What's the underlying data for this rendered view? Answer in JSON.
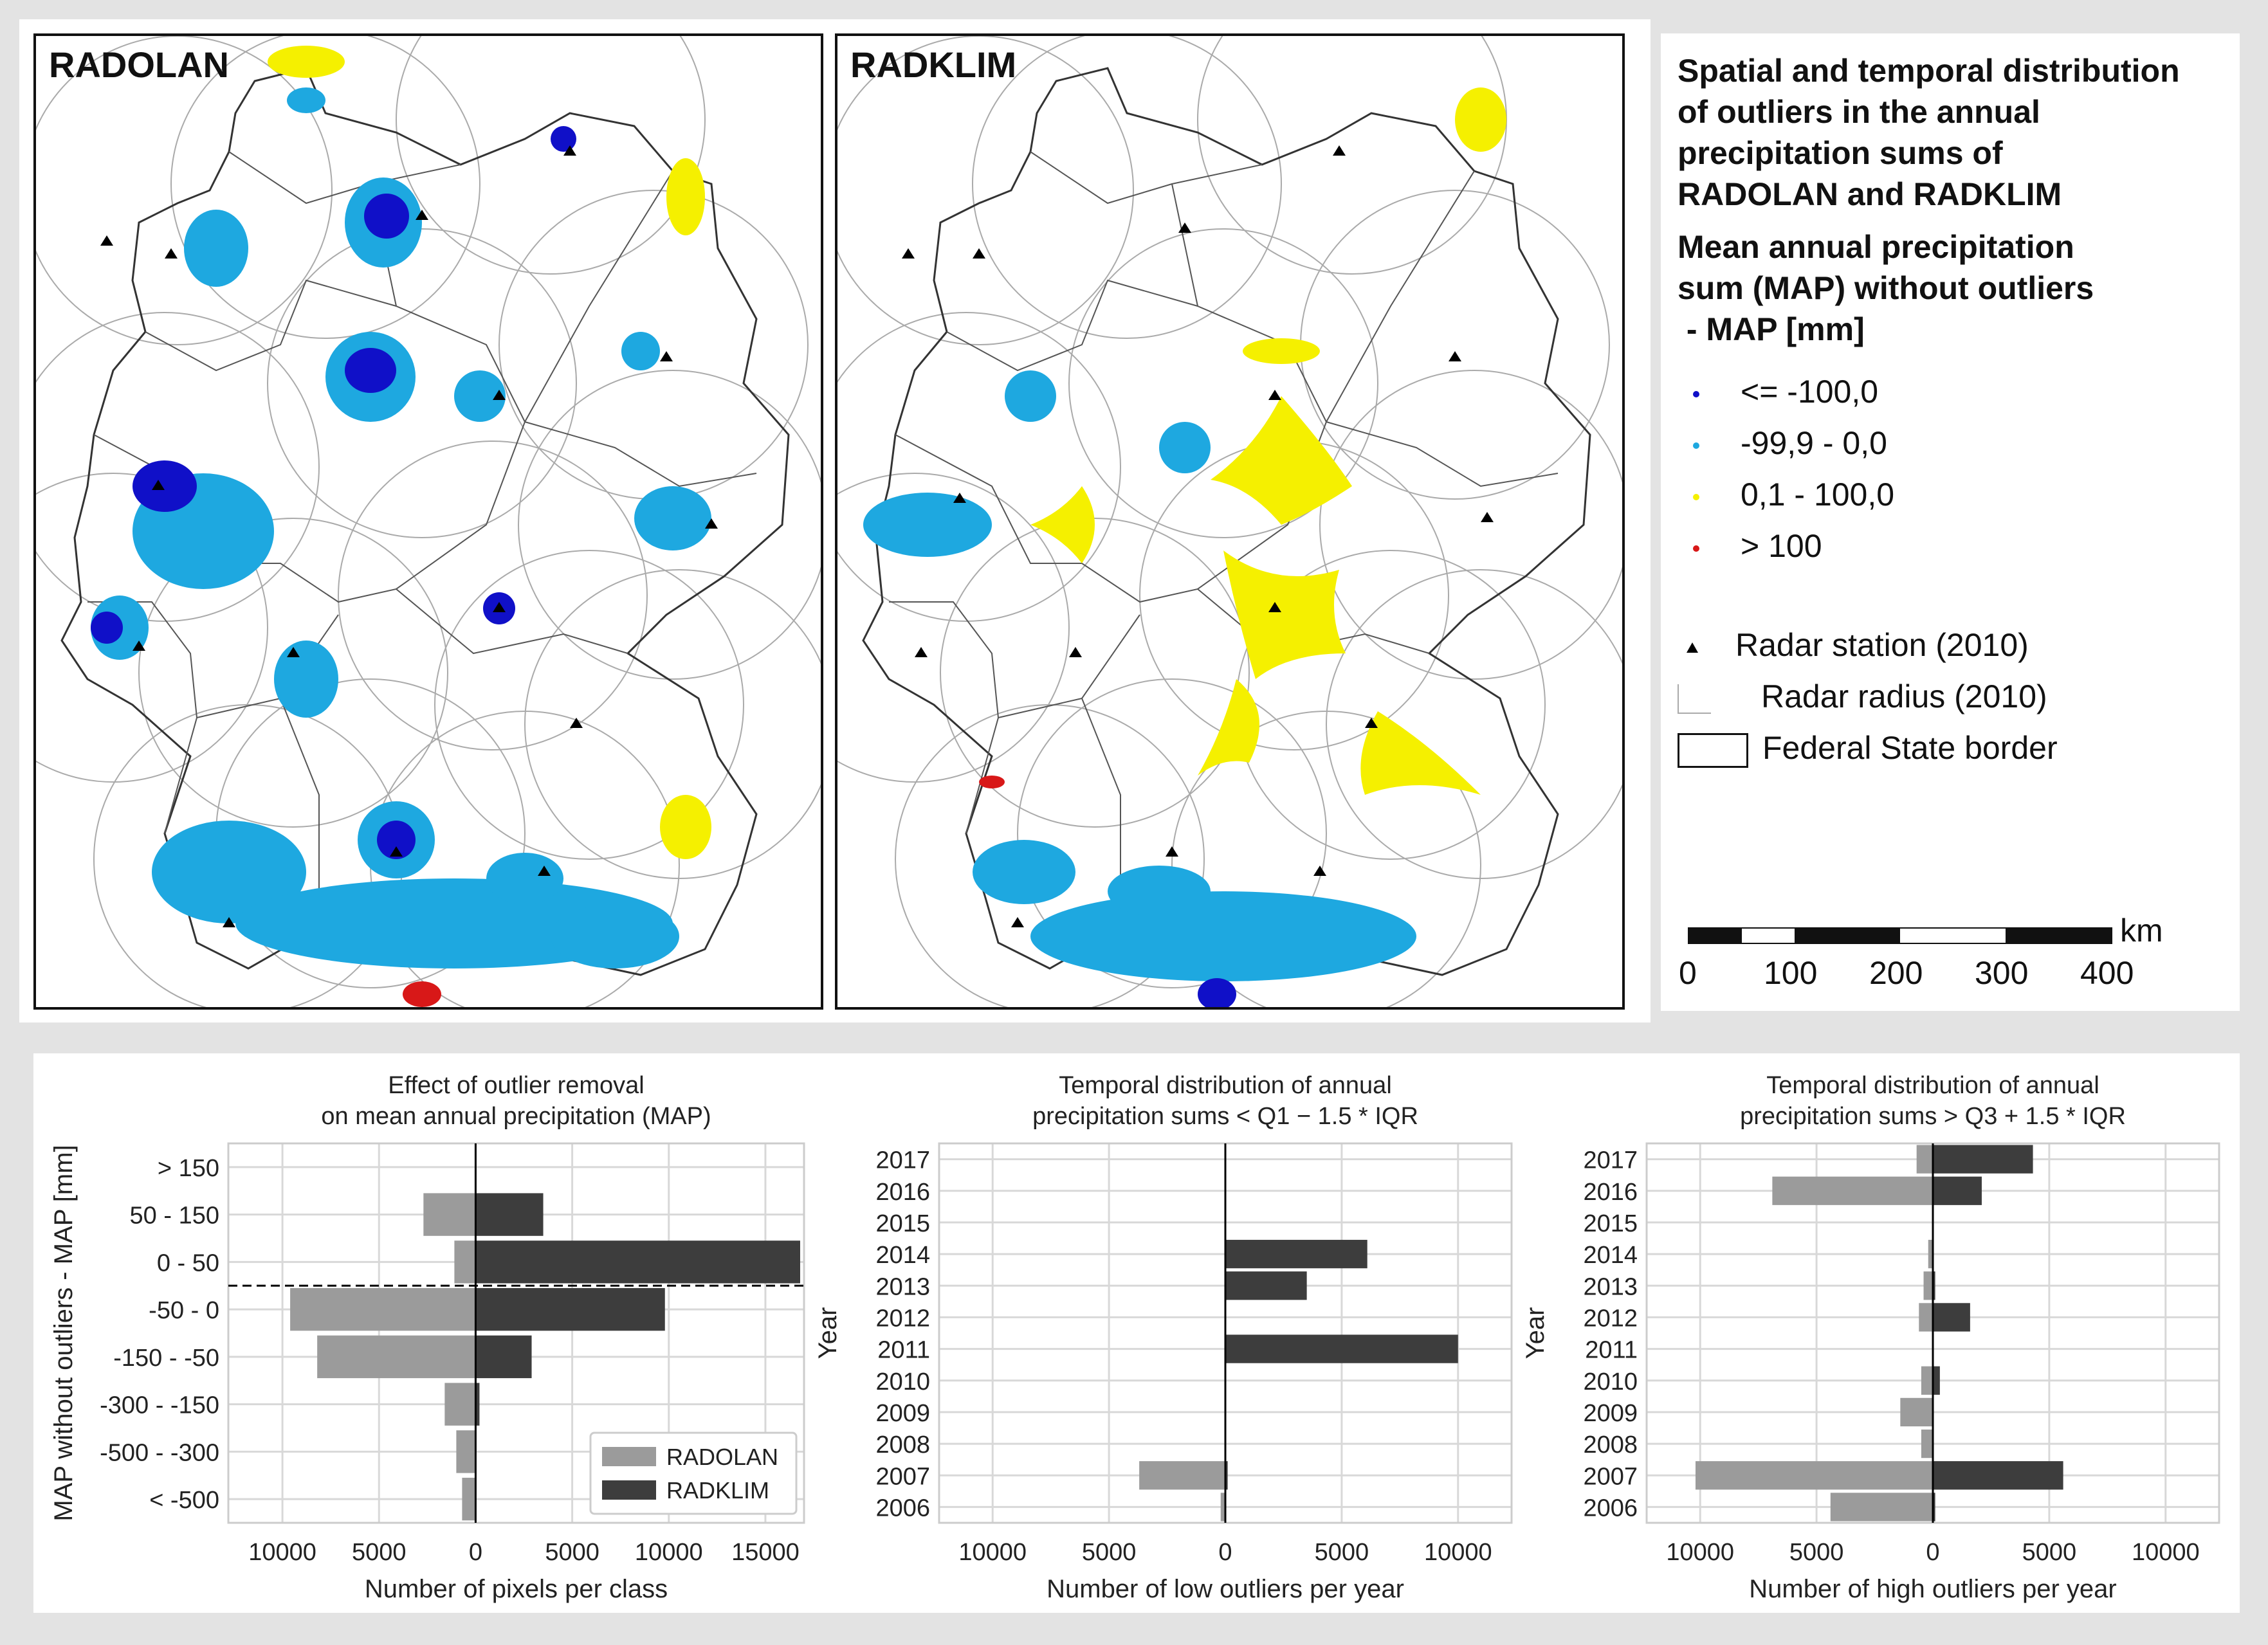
{
  "maps": {
    "left_title": "RADOLAN",
    "right_title": "RADKLIM"
  },
  "legend": {
    "title": [
      "Spatial and temporal distribution",
      "of outliers in the annual",
      "precipitation sums of",
      "RADOLAN and RADKLIM"
    ],
    "subtitle": [
      "Mean annual precipitation",
      "sum (MAP) without outliers",
      " - MAP [mm]"
    ],
    "classes": [
      {
        "label": "<= -100,0",
        "color": "#1010c8"
      },
      {
        "label": "-99,9 - 0,0",
        "color": "#1ea8e0"
      },
      {
        "label": "0,1 - 100,0",
        "color": "#f5f000"
      },
      {
        "label": "> 100",
        "color": "#d81818"
      }
    ],
    "radar_station": "Radar station (2010)",
    "radar_radius": "Radar radius (2010)",
    "state_border": "Federal State border",
    "scale_unit": "km",
    "scale_ticks": [
      "0",
      "100",
      "200",
      "300",
      "400"
    ]
  },
  "colors": {
    "radolan": "#9b9b9b",
    "radklim": "#3d3d3d"
  },
  "chart_data": [
    {
      "type": "bar",
      "orientation": "horizontal",
      "title": "Effect of outlier removal\non mean annual precipitation (MAP)",
      "xlabel": "Number of pixels per class",
      "ylabel": "MAP without outliers - MAP [mm]",
      "categories": [
        "> 150",
        "50 - 150",
        "0 - 50",
        "-50 - 0",
        "-150 - -50",
        "-300 - -150",
        "-500 - -300",
        "< -500"
      ],
      "xlim": [
        -12800,
        17000
      ],
      "xticks": [
        -10000,
        -5000,
        0,
        5000,
        10000,
        15000
      ],
      "xtick_labels": [
        "10000",
        "5000",
        "0",
        "5000",
        "10000",
        "15000"
      ],
      "series": [
        {
          "name": "RADOLAN",
          "values": [
            0,
            -2700,
            -1100,
            -9600,
            -8200,
            -1600,
            -1000,
            -700
          ]
        },
        {
          "name": "RADKLIM",
          "values": [
            0,
            3500,
            16800,
            9800,
            2900,
            200,
            0,
            0
          ]
        }
      ],
      "legend": "bottom-right",
      "reference_line_between": [
        "0 - 50",
        "-50 - 0"
      ]
    },
    {
      "type": "bar",
      "orientation": "horizontal",
      "title": "Temporal distribution of annual\nprecipitation sums  < Q1 − 1.5 * IQR",
      "xlabel": "Number of low outliers per year",
      "ylabel": "Year",
      "categories": [
        "2017",
        "2016",
        "2015",
        "2014",
        "2013",
        "2012",
        "2011",
        "2010",
        "2009",
        "2008",
        "2007",
        "2006"
      ],
      "xlim": [
        -12300,
        12300
      ],
      "xticks": [
        -10000,
        -5000,
        0,
        5000,
        10000
      ],
      "xtick_labels": [
        "10000",
        "5000",
        "0",
        "5000",
        "10000"
      ],
      "series": [
        {
          "name": "RADOLAN",
          "values": [
            0,
            0,
            0,
            0,
            0,
            0,
            0,
            0,
            0,
            0,
            -3700,
            -200
          ]
        },
        {
          "name": "RADKLIM",
          "values": [
            0,
            0,
            0,
            6100,
            3500,
            0,
            10000,
            0,
            0,
            0,
            100,
            0
          ]
        }
      ]
    },
    {
      "type": "bar",
      "orientation": "horizontal",
      "title": "Temporal distribution of annual\nprecipitation sums  > Q3 + 1.5 * IQR",
      "xlabel": "Number of high outliers per year",
      "ylabel": "Year",
      "categories": [
        "2017",
        "2016",
        "2015",
        "2014",
        "2013",
        "2012",
        "2011",
        "2010",
        "2009",
        "2008",
        "2007",
        "2006"
      ],
      "xlim": [
        -12300,
        12300
      ],
      "xticks": [
        -10000,
        -5000,
        0,
        5000,
        10000
      ],
      "xtick_labels": [
        "10000",
        "5000",
        "0",
        "5000",
        "10000"
      ],
      "series": [
        {
          "name": "RADOLAN",
          "values": [
            -700,
            -6900,
            0,
            -200,
            -400,
            -600,
            0,
            -500,
            -1400,
            -500,
            -10200,
            -4400
          ]
        },
        {
          "name": "RADKLIM",
          "values": [
            4300,
            2100,
            0,
            0,
            100,
            1600,
            0,
            300,
            0,
            0,
            5600,
            100
          ]
        }
      ]
    }
  ]
}
